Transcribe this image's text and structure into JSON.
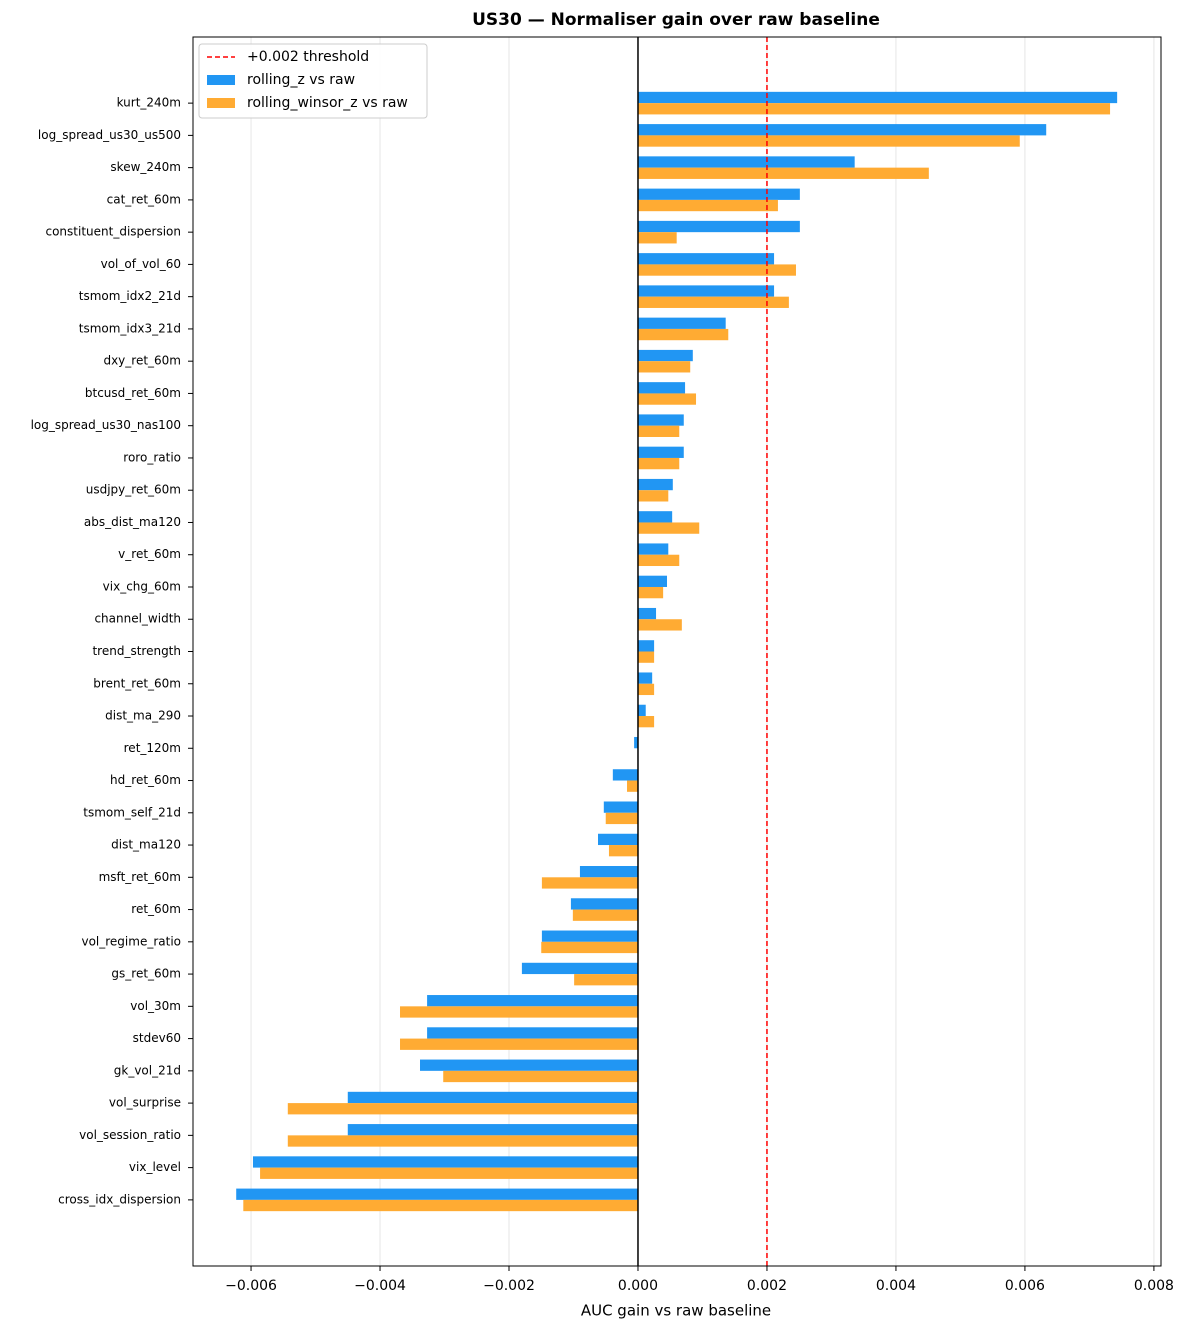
{
  "chart_data": {
    "type": "barh",
    "title": "US30 — Normaliser gain over raw baseline",
    "x_label": "AUC gain vs raw baseline",
    "categories": [
      "kurt_240m",
      "log_spread_us30_us500",
      "skew_240m",
      "cat_ret_60m",
      "constituent_dispersion",
      "vol_of_vol_60",
      "tsmom_idx2_21d",
      "tsmom_idx3_21d",
      "dxy_ret_60m",
      "btcusd_ret_60m",
      "log_spread_us30_nas100",
      "roro_ratio",
      "usdjpy_ret_60m",
      "abs_dist_ma120",
      "v_ret_60m",
      "vix_chg_60m",
      "channel_width",
      "trend_strength",
      "brent_ret_60m",
      "dist_ma_290",
      "ret_120m",
      "hd_ret_60m",
      "tsmom_self_21d",
      "dist_ma120",
      "msft_ret_60m",
      "ret_60m",
      "vol_regime_ratio",
      "gs_ret_60m",
      "vol_30m",
      "stdev60",
      "gk_vol_21d",
      "vol_surprise",
      "vol_session_ratio",
      "vix_level",
      "cross_idx_dispersion"
    ],
    "series": [
      {
        "name": "rolling_z vs raw",
        "color": "#2196f3",
        "values": [
          0.00743,
          0.00633,
          0.00336,
          0.00251,
          0.00251,
          0.00211,
          0.00211,
          0.00136,
          0.00085,
          0.00073,
          0.00071,
          0.00071,
          0.00054,
          0.00053,
          0.00047,
          0.00045,
          0.00028,
          0.00025,
          0.00022,
          0.00012,
          -6e-05,
          -0.00039,
          -0.00053,
          -0.00062,
          -0.0009,
          -0.00104,
          -0.00149,
          -0.0018,
          -0.00327,
          -0.00327,
          -0.00338,
          -0.0045,
          -0.0045,
          -0.00597,
          -0.00623
        ]
      },
      {
        "name": "rolling_winsor_z vs raw",
        "color": "#ffab33",
        "values": [
          0.00732,
          0.00592,
          0.00451,
          0.00217,
          0.0006,
          0.00245,
          0.00234,
          0.0014,
          0.00081,
          0.0009,
          0.00064,
          0.00064,
          0.00047,
          0.00095,
          0.00064,
          0.00039,
          0.00068,
          0.00025,
          0.00025,
          0.00025,
          0,
          -0.00017,
          -0.0005,
          -0.00045,
          -0.00149,
          -0.00101,
          -0.0015,
          -0.00099,
          -0.00369,
          -0.00369,
          -0.00302,
          -0.00543,
          -0.00543,
          -0.00586,
          -0.00612
        ]
      }
    ],
    "threshold": {
      "value": 0.002,
      "label": "+0.002 threshold",
      "color": "#ff0000"
    },
    "xlim": [
      -0.0069,
      0.00811
    ],
    "xticks": [
      {
        "value": -0.006,
        "label": "−0.006"
      },
      {
        "value": -0.004,
        "label": "−0.004"
      },
      {
        "value": -0.002,
        "label": "−0.002"
      },
      {
        "value": 0,
        "label": "0.000"
      },
      {
        "value": 0.002,
        "label": "0.002"
      },
      {
        "value": 0.004,
        "label": "0.004"
      },
      {
        "value": 0.006,
        "label": "0.006"
      },
      {
        "value": 0.008,
        "label": "0.008"
      }
    ],
    "grid": true,
    "legend": "upper left"
  }
}
